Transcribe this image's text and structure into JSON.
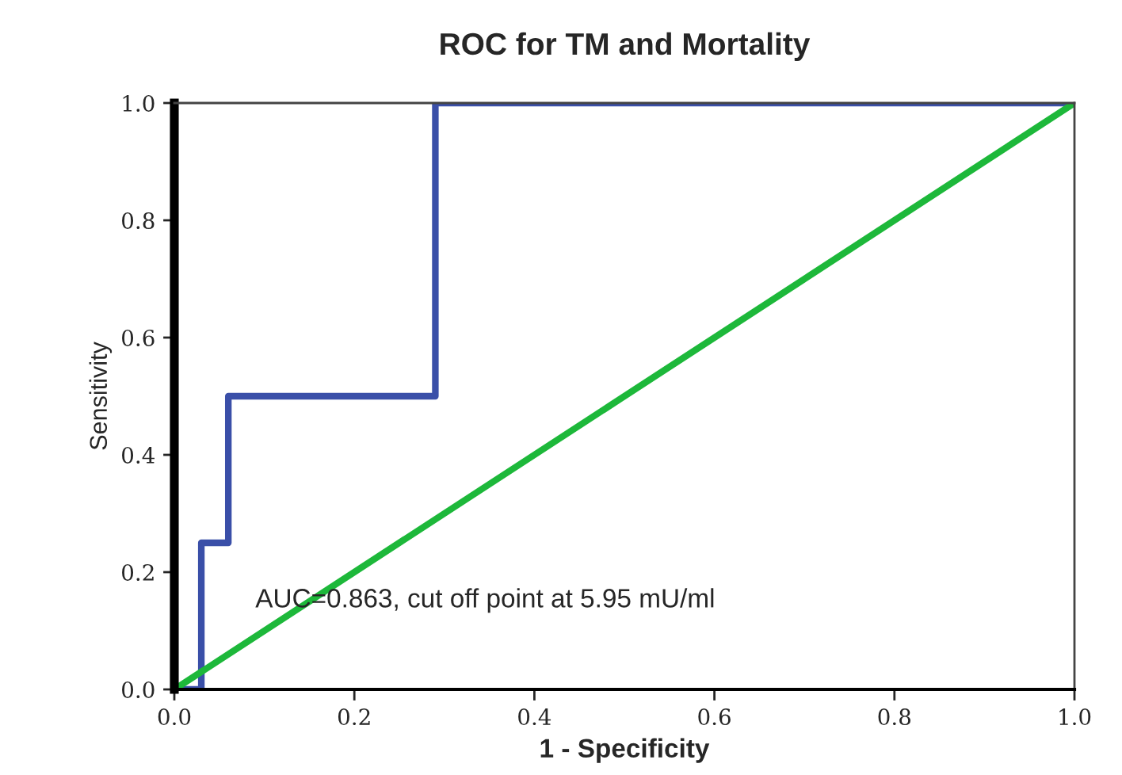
{
  "chart_data": {
    "type": "line",
    "title": "ROC for TM and Mortality",
    "xlabel": "1 - Specificity",
    "ylabel": "Sensitivity",
    "series": [
      {
        "color": "#3a4fa8",
        "x": [
          0,
          0.03,
          0.03,
          0.06,
          0.06,
          0.29,
          0.29,
          1
        ],
        "values": [
          0,
          0,
          0.25,
          0.25,
          0.5,
          0.5,
          1,
          1
        ]
      },
      {
        "color": "#1db83a",
        "x": [
          0,
          1
        ],
        "values": [
          0,
          1
        ]
      }
    ],
    "annotations": [
      "AUC=0.863, cut off point at 5.95 mU/ml"
    ],
    "xlim": [
      0,
      1
    ],
    "ylim": [
      0,
      1
    ],
    "xticks": [
      {
        "value": 0,
        "label": "0.0"
      },
      0.2,
      0.4,
      0.6,
      0.8,
      {
        "value": 1,
        "label": "1.0"
      }
    ],
    "yticks": [
      {
        "value": 0,
        "label": "0.0"
      },
      0.2,
      0.4,
      0.6,
      0.8,
      {
        "value": 1,
        "label": "1.0"
      }
    ],
    "grid": false,
    "legend": false
  }
}
